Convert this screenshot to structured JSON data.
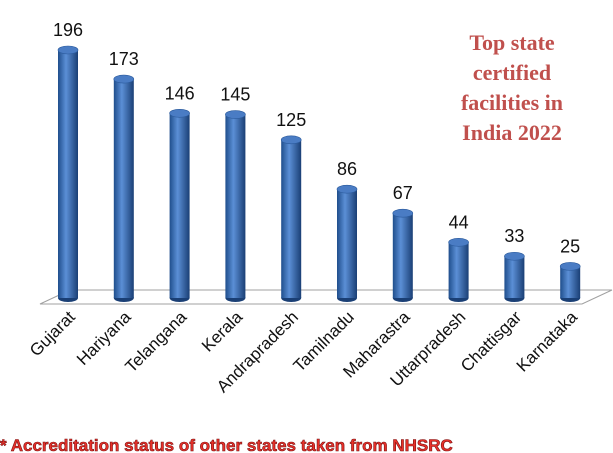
{
  "chart_data": {
    "type": "bar",
    "title": "Top state certified facilities in India 2022",
    "categories": [
      "Gujarat",
      "Hariyana",
      "Telangana",
      "Kerala",
      "Andrapradesh",
      "Tamilnadu",
      "Maharastra",
      "Uttarpradesh",
      "Chattisgar",
      "Karnataka"
    ],
    "values": [
      196,
      173,
      146,
      145,
      125,
      86,
      67,
      44,
      33,
      25
    ],
    "color": "#4a7cc4",
    "note": "* Accreditation status of other states taken from  NHSRC"
  }
}
